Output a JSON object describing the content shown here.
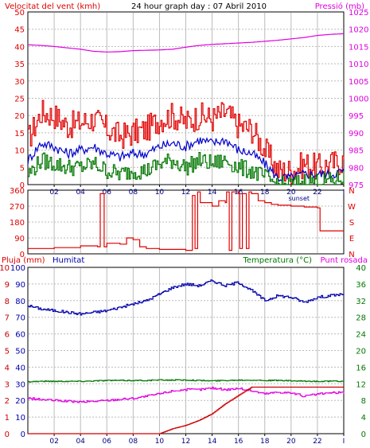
{
  "header": {
    "title": "24 hour graph day : 07 Abril 2010",
    "left_label": "Velocitat del vent (kmh)",
    "right_label": "Pressió (mb)"
  },
  "labels": {
    "sunset": "sunset",
    "bottom_left_rain": "Pluja (mm)",
    "bottom_left_hum": "Humitat",
    "bottom_right_temp": "Temperatura (°C)",
    "bottom_right_dew": "Punt rosada"
  },
  "colors": {
    "wind_gust": "#e00000",
    "wind_avg": "#0000cc",
    "wind_min": "#007700",
    "pressure": "#e000e0",
    "wind_dir": "#e00000",
    "humidity": "#0000aa",
    "temperature": "#007700",
    "dew_point": "#e000e0",
    "rain": "#cc0000",
    "grid": "#bbbbbb"
  },
  "x_axis": {
    "ticks": [
      "02",
      "04",
      "06",
      "08",
      "10",
      "12",
      "14",
      "16",
      "18",
      "20",
      "22",
      "I"
    ],
    "sunset_hour": 20.6
  },
  "chart_data": [
    {
      "type": "line",
      "panel": "wind-pressure",
      "title": "24 hour graph day : 07 Abril 2010",
      "ylabel": "Velocitat del vent (kmh)",
      "y2label": "Pressió (mb)",
      "ylim": [
        0,
        50
      ],
      "y2lim": [
        975,
        1025
      ],
      "yticks": [
        "0",
        "5",
        "10",
        "15",
        "20",
        "25",
        "30",
        "35",
        "40",
        "45",
        "50"
      ],
      "y2ticks": [
        "975",
        "980",
        "985",
        "990",
        "995",
        "1000",
        "1005",
        "1010",
        "1015",
        "1020",
        "1025"
      ],
      "x_hours": [
        0,
        1,
        2,
        3,
        4,
        5,
        6,
        7,
        8,
        9,
        10,
        11,
        12,
        13,
        14,
        15,
        16,
        17,
        18,
        19,
        20,
        21,
        22,
        23,
        24
      ],
      "series": [
        {
          "key": "gust",
          "axis": "left",
          "values": [
            13,
            21,
            20,
            17,
            18,
            19,
            16,
            14,
            15,
            16,
            19,
            20,
            18,
            20,
            19,
            21,
            17,
            16,
            10,
            4,
            4,
            6,
            5,
            6,
            7
          ]
        },
        {
          "key": "avg",
          "axis": "left",
          "values": [
            7,
            12,
            11,
            9,
            10,
            11,
            9,
            8,
            9,
            9,
            11,
            12,
            11,
            13,
            12,
            13,
            10,
            9,
            6,
            2,
            2,
            3,
            3,
            3,
            4
          ]
        },
        {
          "key": "min",
          "axis": "left",
          "values": [
            3,
            7,
            6,
            5,
            5,
            6,
            4,
            3,
            4,
            4,
            6,
            7,
            5,
            7,
            6,
            7,
            5,
            4,
            2,
            0,
            0,
            1,
            1,
            1,
            2
          ]
        },
        {
          "key": "pressure",
          "axis": "right",
          "values": [
            1015.5,
            1015.3,
            1015,
            1014.6,
            1014.2,
            1013.6,
            1013.4,
            1013.5,
            1013.8,
            1013.9,
            1014,
            1014.2,
            1014.8,
            1015.3,
            1015.6,
            1015.8,
            1016,
            1016.2,
            1016.5,
            1016.8,
            1017.2,
            1017.6,
            1018.2,
            1018.5,
            1018.7
          ]
        }
      ]
    },
    {
      "type": "line",
      "panel": "wind-direction",
      "ylim": [
        0,
        360
      ],
      "yticks": [
        "0",
        "90",
        "180",
        "270",
        "360"
      ],
      "compass_labels": [
        "N",
        "W",
        "S",
        "E",
        "N"
      ],
      "x_hours": [
        0,
        2,
        4,
        5.3,
        5.5,
        5.8,
        6,
        7,
        7.5,
        8,
        8.5,
        9,
        10,
        11,
        12,
        12.5,
        12.7,
        12.9,
        13.1,
        14,
        14.5,
        15,
        15.1,
        15.3,
        15.5,
        16,
        16.1,
        16.3,
        16.6,
        16.8,
        17,
        17.5,
        18,
        18.5,
        19,
        20,
        21,
        22,
        22.2,
        23,
        24
      ],
      "values": [
        30,
        35,
        45,
        40,
        340,
        40,
        60,
        55,
        90,
        80,
        40,
        30,
        25,
        25,
        20,
        330,
        30,
        350,
        290,
        270,
        300,
        290,
        350,
        20,
        350,
        340,
        30,
        340,
        30,
        350,
        340,
        300,
        290,
        280,
        275,
        270,
        265,
        260,
        130,
        130,
        130
      ]
    },
    {
      "type": "line",
      "panel": "humidity-temperature",
      "ylabel": "Pluja (mm)",
      "y2label": "Temperatura (°C)",
      "ylim": [
        0,
        10
      ],
      "humidity_lim": [
        0,
        100
      ],
      "y2lim": [
        0,
        40
      ],
      "rain_ticks": [
        "0",
        "1",
        "2",
        "3",
        "4",
        "5",
        "6",
        "7",
        "8",
        "9",
        "10"
      ],
      "humidity_ticks": [
        "0",
        "10",
        "20",
        "30",
        "40",
        "50",
        "60",
        "70",
        "80",
        "90",
        "100"
      ],
      "temperature_ticks": [
        "0",
        "4",
        "8",
        "12",
        "16",
        "20",
        "24",
        "28",
        "32",
        "36",
        "40"
      ],
      "x_hours": [
        0,
        1,
        2,
        3,
        4,
        5,
        6,
        7,
        8,
        9,
        10,
        11,
        12,
        13,
        14,
        15,
        16,
        17,
        18,
        19,
        20,
        21,
        22,
        23,
        24
      ],
      "series": [
        {
          "key": "humidity",
          "axis": "humidity",
          "values": [
            77,
            75,
            74,
            73,
            72,
            73,
            74,
            76,
            78,
            80,
            84,
            88,
            90,
            89,
            92,
            89,
            91,
            86,
            80,
            83,
            82,
            79,
            82,
            83,
            84
          ]
        },
        {
          "key": "temperature",
          "axis": "right",
          "values": [
            12.5,
            12.6,
            12.6,
            12.6,
            12.6,
            12.7,
            12.8,
            12.8,
            12.8,
            12.8,
            12.9,
            12.9,
            12.9,
            12.8,
            12.7,
            12.8,
            12.9,
            12.9,
            12.8,
            12.8,
            12.7,
            12.6,
            12.6,
            12.6,
            12.6
          ]
        },
        {
          "key": "dew_point",
          "axis": "right",
          "values": [
            8.5,
            8.2,
            8,
            7.8,
            7.6,
            7.8,
            8,
            8.3,
            8.5,
            9,
            9.6,
            10.3,
            10.6,
            10.6,
            11,
            10.6,
            10.9,
            10.3,
            9.6,
            10,
            9.8,
            9,
            9.5,
            9.8,
            9.9
          ]
        },
        {
          "key": "rain",
          "axis": "left",
          "values": [
            0,
            0,
            0,
            0,
            0,
            0,
            0,
            0,
            0,
            0,
            0,
            0.3,
            0.5,
            0.8,
            1.2,
            1.8,
            2.3,
            2.8,
            2.8,
            2.8,
            2.8,
            2.8,
            2.8,
            2.8,
            2.8
          ]
        }
      ]
    }
  ]
}
